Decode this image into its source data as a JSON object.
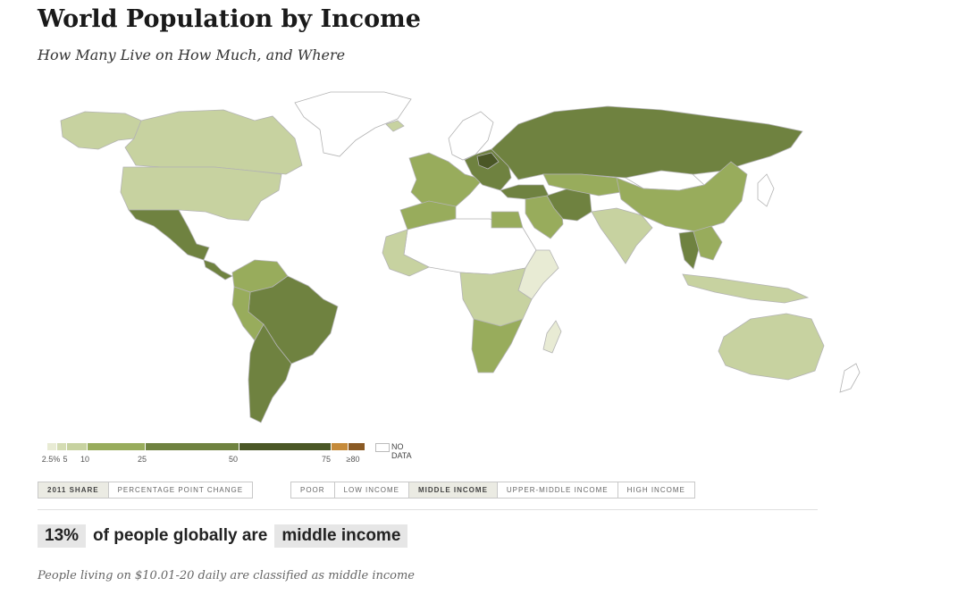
{
  "header": {
    "title": "World Population by Income",
    "subtitle": "How Many Live on How Much, and Where"
  },
  "map": {
    "palette": {
      "lt5": "#e8ebd4",
      "5-10": "#c7d2a0",
      "10-25": "#98ac5c",
      "25-50": "#6f8240",
      "50-75": "#4a5726",
      "75-80": "#c58a3a",
      "gte80": "#8a5a24",
      "no_data": "#ffffff",
      "ocean": "#ffffff",
      "border": "#b3b3b3"
    },
    "regions": [
      {
        "name": "alaska",
        "bin": "5-10"
      },
      {
        "name": "canada",
        "bin": "5-10"
      },
      {
        "name": "usa",
        "bin": "5-10"
      },
      {
        "name": "greenland",
        "bin": "no_data"
      },
      {
        "name": "mexico",
        "bin": "25-50"
      },
      {
        "name": "central-america",
        "bin": "25-50"
      },
      {
        "name": "colombia-venezuela",
        "bin": "10-25"
      },
      {
        "name": "brazil",
        "bin": "25-50"
      },
      {
        "name": "peru-bolivia",
        "bin": "10-25"
      },
      {
        "name": "southern-cone",
        "bin": "25-50"
      },
      {
        "name": "iceland",
        "bin": "5-10"
      },
      {
        "name": "scandinavia",
        "bin": "no_data"
      },
      {
        "name": "western-europe",
        "bin": "10-25"
      },
      {
        "name": "eastern-europe",
        "bin": "25-50"
      },
      {
        "name": "belarus",
        "bin": "50-75"
      },
      {
        "name": "russia",
        "bin": "25-50"
      },
      {
        "name": "turkey",
        "bin": "25-50"
      },
      {
        "name": "middle-east",
        "bin": "10-25"
      },
      {
        "name": "iran",
        "bin": "25-50"
      },
      {
        "name": "central-asia",
        "bin": "10-25"
      },
      {
        "name": "mongolia",
        "bin": "no_data"
      },
      {
        "name": "china",
        "bin": "10-25"
      },
      {
        "name": "india",
        "bin": "5-10"
      },
      {
        "name": "thailand",
        "bin": "25-50"
      },
      {
        "name": "southeast-asia",
        "bin": "10-25"
      },
      {
        "name": "indonesia",
        "bin": "5-10"
      },
      {
        "name": "japan",
        "bin": "no_data"
      },
      {
        "name": "north-africa",
        "bin": "10-25"
      },
      {
        "name": "sahel",
        "bin": "no_data"
      },
      {
        "name": "west-africa",
        "bin": "5-10"
      },
      {
        "name": "egypt",
        "bin": "10-25"
      },
      {
        "name": "east-africa",
        "bin": "lt5"
      },
      {
        "name": "central-africa",
        "bin": "5-10"
      },
      {
        "name": "southern-africa",
        "bin": "10-25"
      },
      {
        "name": "madagascar",
        "bin": "lt5"
      },
      {
        "name": "australia",
        "bin": "5-10"
      },
      {
        "name": "new-zealand",
        "bin": "no_data"
      }
    ]
  },
  "legend": {
    "bins": [
      {
        "key": "lt5",
        "color": "#e8ebd4"
      },
      {
        "key": "2.5-5",
        "color": "#d4dcb3"
      },
      {
        "key": "5-10",
        "color": "#c7d2a0"
      },
      {
        "key": "10-25",
        "color": "#98ac5c"
      },
      {
        "key": "25-50",
        "color": "#6f8240"
      },
      {
        "key": "50-75",
        "color": "#4a5726"
      },
      {
        "key": "75-80",
        "color": "#c58a3a"
      },
      {
        "key": "gte80",
        "color": "#8a5a24"
      }
    ],
    "ticks": [
      "2.5%",
      "5",
      "10",
      "25",
      "50",
      "75",
      "≥80"
    ],
    "no_data_label": "NO DATA"
  },
  "toggles": {
    "metric": [
      {
        "label": "2011 SHARE",
        "active": true
      },
      {
        "label": "PERCENTAGE POINT CHANGE",
        "active": false
      }
    ],
    "income": [
      {
        "label": "POOR",
        "active": false
      },
      {
        "label": "LOW INCOME",
        "active": false
      },
      {
        "label": "MIDDLE INCOME",
        "active": true
      },
      {
        "label": "UPPER-MIDDLE INCOME",
        "active": false
      },
      {
        "label": "HIGH INCOME",
        "active": false
      }
    ]
  },
  "stat": {
    "value": "13%",
    "text": "of people globally are",
    "group": "middle income"
  },
  "note": "People living on $10.01-20 daily are classified as middle income"
}
